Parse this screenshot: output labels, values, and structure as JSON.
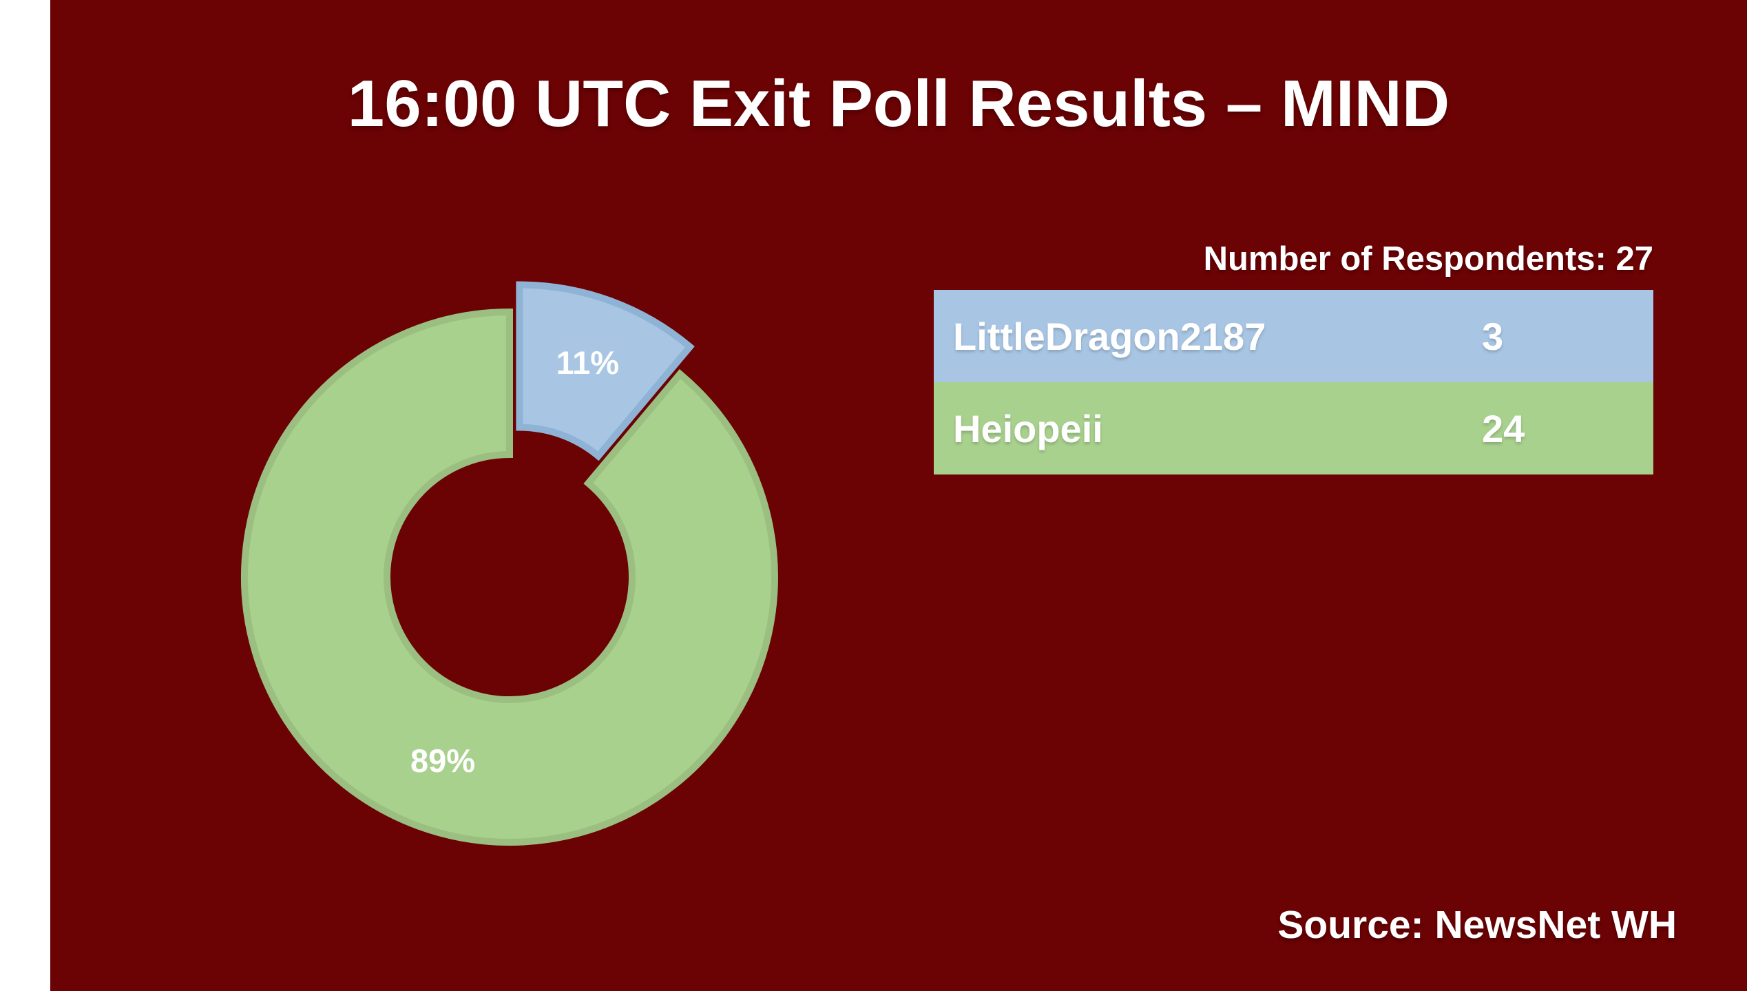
{
  "title": "16:00 UTC Exit Poll Results – MIND",
  "respondents_header": "Number of Respondents: 27",
  "source_label": "Source: NewsNet WH",
  "colors": {
    "slide_background": "#6B0204",
    "margin_strip": "#ffffff",
    "text": "#ffffff",
    "blue_fill": "#A8C6E4",
    "blue_stroke": "#8FB3D4",
    "green_fill": "#A9D18E",
    "green_stroke": "#9BBF80"
  },
  "chart_data": {
    "type": "pie",
    "donut": true,
    "title": "16:00 UTC Exit Poll Results – MIND",
    "categories": [
      "LittleDragon2187",
      "Heiopeii"
    ],
    "values": [
      3,
      24
    ],
    "percent_labels": [
      "11%",
      "89%"
    ],
    "total": 27,
    "slice_colors": [
      "#A8C6E4",
      "#A9D18E"
    ],
    "slice_strokes": [
      "#8FB3D4",
      "#9BBF80"
    ],
    "exploded_index": 0,
    "legend_position": "right",
    "start_angle_deg": 0,
    "annotations": [
      "Number of Respondents: 27",
      "Source: NewsNet WH"
    ]
  },
  "legend": {
    "header": "Number of Respondents: 27",
    "rows": [
      {
        "name": "LittleDragon2187",
        "value": "3",
        "color": "#A8C6E4"
      },
      {
        "name": "Heiopeii",
        "value": "24",
        "color": "#A9D18E"
      }
    ]
  }
}
